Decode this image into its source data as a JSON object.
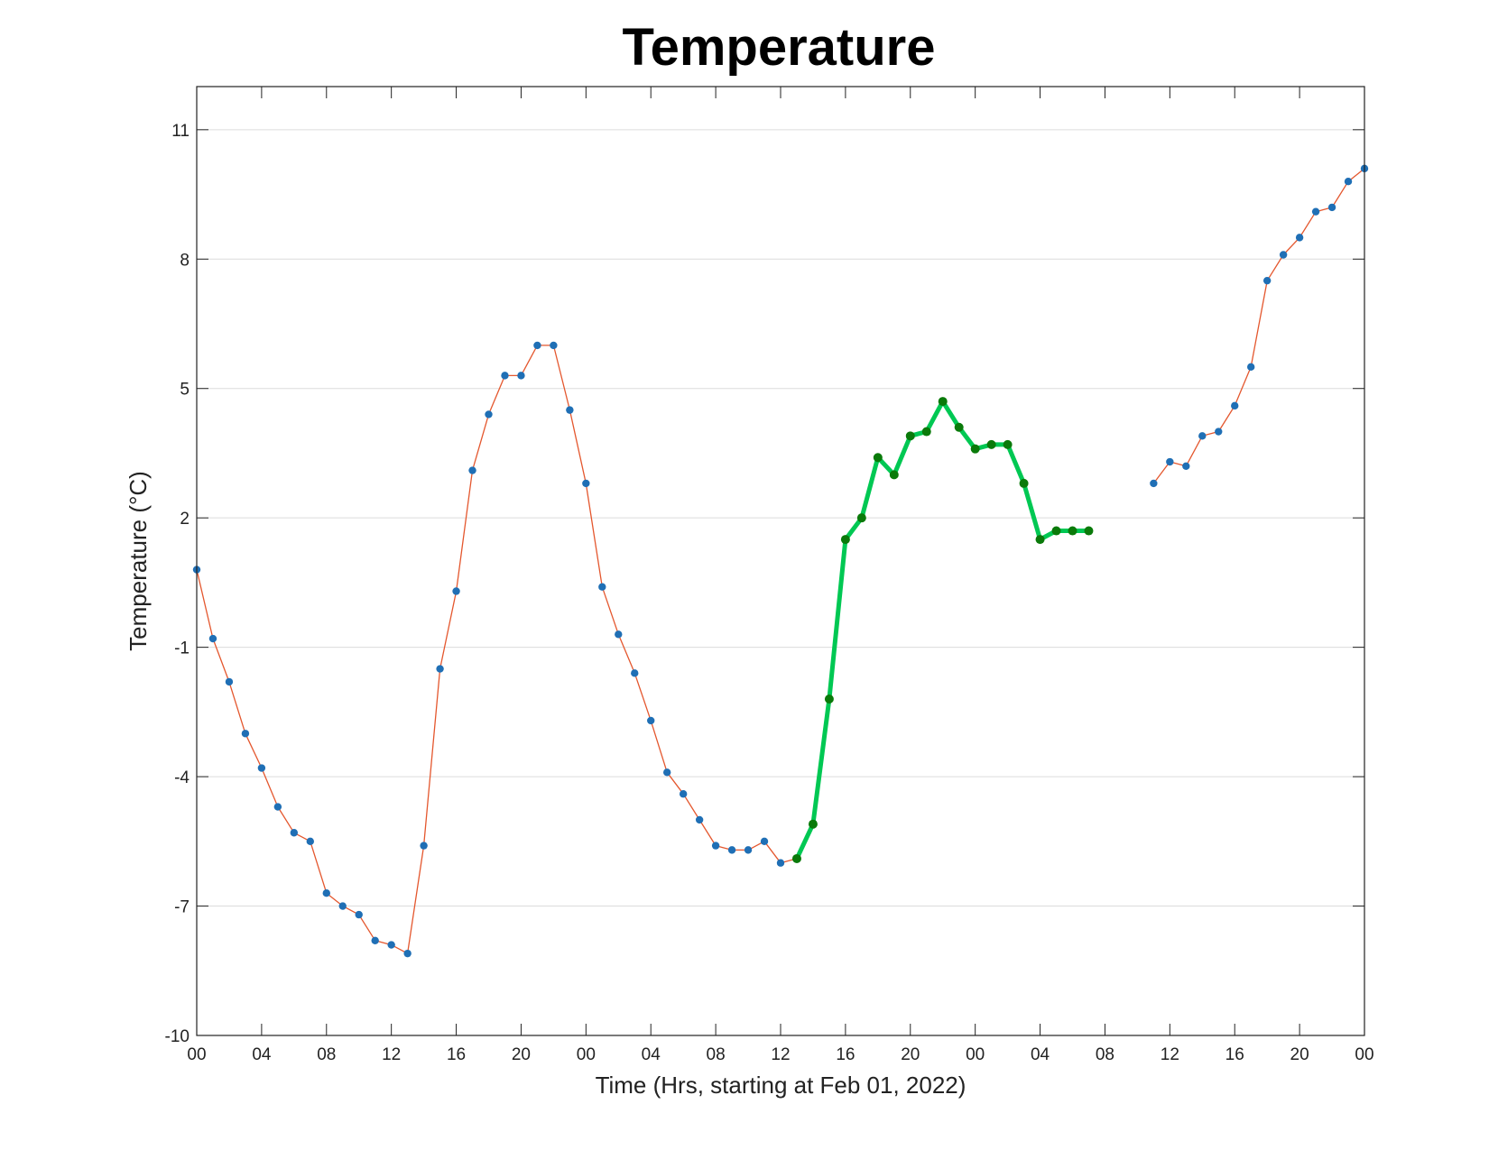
{
  "chart_data": {
    "type": "line",
    "title": "Temperature",
    "xlabel": "Time (Hrs, starting at Feb 01, 2022)",
    "ylabel": "Temperature (°C)",
    "xlim": [
      0,
      72
    ],
    "ylim": [
      -10,
      12
    ],
    "x_ticks": [
      0,
      4,
      8,
      12,
      16,
      20,
      24,
      28,
      32,
      36,
      40,
      44,
      48,
      52,
      56,
      60,
      64,
      68,
      72
    ],
    "x_tick_labels": [
      "00",
      "04",
      "08",
      "12",
      "16",
      "20",
      "00",
      "04",
      "08",
      "12",
      "16",
      "20",
      "00",
      "04",
      "08",
      "12",
      "16",
      "20",
      "00"
    ],
    "y_ticks": [
      -10,
      -7,
      -4,
      -1,
      2,
      5,
      8,
      11
    ],
    "y_tick_labels": [
      "-10",
      "-7",
      "-4",
      "-1",
      "2",
      "5",
      "8",
      "11"
    ],
    "grid": "horizontal",
    "colors": {
      "observed_line": "#e4572e",
      "observed_marker": "#1f6fb5",
      "highlight_line": "#00c853",
      "highlight_marker": "#0a7a0a"
    },
    "series": [
      {
        "style": "observed",
        "x": [
          0,
          1,
          2,
          3,
          4,
          5,
          6,
          7,
          8,
          9,
          10,
          11,
          12,
          13,
          14,
          15,
          16,
          17,
          18,
          19,
          20,
          21,
          22,
          23,
          24,
          25,
          26,
          27,
          28,
          29,
          30,
          31,
          32,
          33,
          34,
          35,
          36,
          37
        ],
        "y": [
          0.8,
          -0.8,
          -1.8,
          -3.0,
          -3.8,
          -4.7,
          -5.3,
          -5.5,
          -6.7,
          -7.0,
          -7.2,
          -7.8,
          -7.9,
          -8.1,
          -5.6,
          -1.5,
          0.3,
          3.1,
          4.4,
          5.3,
          5.3,
          6.0,
          6.0,
          4.5,
          2.8,
          0.4,
          -0.7,
          -1.6,
          -2.7,
          -3.9,
          -4.4,
          -5.0,
          -5.6,
          -5.7,
          -5.7,
          -5.5,
          -6.0,
          -5.9
        ]
      },
      {
        "style": "highlight",
        "x": [
          37,
          38,
          39,
          40,
          41,
          42,
          43,
          44,
          45,
          46,
          47,
          48,
          49,
          50,
          51,
          52,
          53,
          54,
          55
        ],
        "y": [
          -5.9,
          -5.1,
          -2.2,
          1.5,
          2.0,
          3.4,
          3.0,
          3.9,
          4.0,
          4.7,
          4.1,
          3.6,
          3.7,
          3.7,
          2.8,
          1.5,
          1.7,
          1.7,
          1.7
        ]
      },
      {
        "style": "observed",
        "x": [
          59,
          60,
          61,
          62,
          63,
          64,
          65,
          66,
          67,
          68,
          69,
          70,
          71,
          72
        ],
        "y": [
          2.8,
          3.3,
          3.2,
          3.9,
          4.0,
          4.6,
          5.5,
          7.5,
          8.1,
          8.5,
          9.1,
          9.2,
          9.8,
          10.1
        ]
      }
    ]
  }
}
